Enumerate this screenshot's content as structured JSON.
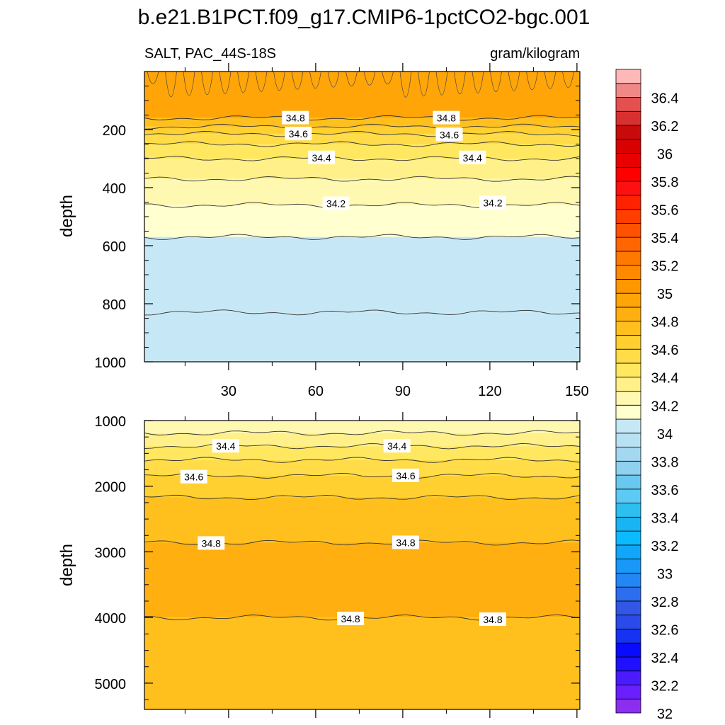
{
  "chart_data": {
    "type": "heatmap",
    "title": "b.e21.B1PCT.f09_g17.CMIP6-1pctCO2-bgc.001",
    "left_subtitle": "SALT, PAC_44S-18S",
    "right_subtitle": "gram/kilogram",
    "x_ticks": [
      30,
      60,
      90,
      120,
      150
    ],
    "x_range": [
      1,
      151
    ],
    "colorbar": {
      "levels": [
        32,
        32.1,
        32.2,
        32.3,
        32.4,
        32.5,
        32.6,
        32.7,
        32.8,
        32.9,
        33,
        33.1,
        33.2,
        33.3,
        33.4,
        33.5,
        33.6,
        33.7,
        33.8,
        33.9,
        34,
        34.1,
        34.2,
        34.3,
        34.4,
        34.5,
        34.6,
        34.7,
        34.8,
        34.9,
        35,
        35.1,
        35.2,
        35.3,
        35.4,
        35.5,
        35.6,
        35.7,
        35.8,
        35.9,
        36,
        36.1,
        36.2,
        36.3,
        36.4,
        36.5
      ],
      "labels": [
        "32",
        "32.2",
        "32.4",
        "32.6",
        "32.8",
        "33",
        "33.2",
        "33.4",
        "33.6",
        "33.8",
        "34",
        "34.2",
        "34.4",
        "34.6",
        "34.8",
        "35",
        "35.2",
        "35.4",
        "35.6",
        "35.8",
        "36",
        "36.2",
        "36.4"
      ],
      "colors": [
        "#8c2ef0",
        "#6a1fff",
        "#4b1bff",
        "#1f10ff",
        "#0a0aff",
        "#1632f2",
        "#2a4bea",
        "#3257e6",
        "#2c6ef0",
        "#2486f5",
        "#1898f8",
        "#12a6fa",
        "#0cbaff",
        "#18b4f4",
        "#2dbff0",
        "#5ccaf4",
        "#68c8f0",
        "#8fd2f0",
        "#a3d8f0",
        "#b8e2f4",
        "#c6e8f6",
        "#ffffd0",
        "#fff8b0",
        "#fff08a",
        "#ffe860",
        "#ffdc48",
        "#ffd030",
        "#ffc01e",
        "#ffb010",
        "#ffa508",
        "#ff9800",
        "#ff8a00",
        "#ff7800",
        "#ff6600",
        "#ff5200",
        "#ff3e00",
        "#ff2200",
        "#ff1010",
        "#ff0000",
        "#ea0000",
        "#d80000",
        "#c80a0a",
        "#d83030",
        "#e45050",
        "#f08888",
        "#ffb8b8"
      ]
    },
    "panels": [
      {
        "ylabel": "depth",
        "y_range": [
          0,
          1000
        ],
        "y_ticks": [
          200,
          400,
          600,
          800,
          1000
        ],
        "contours": [
          {
            "level": 34.8,
            "depth": 160
          },
          {
            "level": 34.7,
            "depth": 190
          },
          {
            "level": 34.6,
            "depth": 215
          },
          {
            "level": 34.5,
            "depth": 250
          },
          {
            "level": 34.4,
            "depth": 300
          },
          {
            "level": 34.3,
            "depth": 370
          },
          {
            "level": 34.2,
            "depth": 460
          },
          {
            "level": 34.1,
            "depth": 570
          },
          {
            "level": 34.0,
            "depth": 830
          }
        ],
        "contour_labels": [
          {
            "text": "34.8",
            "x": 53,
            "y": 160
          },
          {
            "text": "34.8",
            "x": 105,
            "y": 160
          },
          {
            "text": "34.6",
            "x": 54,
            "y": 215
          },
          {
            "text": "34.6",
            "x": 106,
            "y": 218
          },
          {
            "text": "34.4",
            "x": 62,
            "y": 297
          },
          {
            "text": "34.4",
            "x": 114,
            "y": 297
          },
          {
            "text": "34.2",
            "x": 67,
            "y": 455
          },
          {
            "text": "34.2",
            "x": 121,
            "y": 453
          }
        ]
      },
      {
        "ylabel": "depth",
        "y_range": [
          1000,
          5400
        ],
        "y_ticks": [
          1000,
          2000,
          3000,
          4000,
          5000
        ],
        "contours": [
          {
            "level": 34.3,
            "depth": 1190
          },
          {
            "level": 34.4,
            "depth": 1390
          },
          {
            "level": 34.5,
            "depth": 1600
          },
          {
            "level": 34.6,
            "depth": 1840
          },
          {
            "level": 34.7,
            "depth": 2170
          },
          {
            "level": 34.8,
            "depth": 2860
          },
          {
            "level": 34.8,
            "depth": 4000
          }
        ],
        "contour_labels": [
          {
            "text": "34.4",
            "x": 29,
            "y": 1390
          },
          {
            "text": "34.4",
            "x": 88,
            "y": 1390
          },
          {
            "text": "34.6",
            "x": 18,
            "y": 1860
          },
          {
            "text": "34.6",
            "x": 91,
            "y": 1840
          },
          {
            "text": "34.8",
            "x": 24,
            "y": 2870
          },
          {
            "text": "34.8",
            "x": 91,
            "y": 2860
          },
          {
            "text": "34.8",
            "x": 72,
            "y": 4020
          },
          {
            "text": "34.8",
            "x": 121,
            "y": 4030
          }
        ]
      }
    ]
  }
}
